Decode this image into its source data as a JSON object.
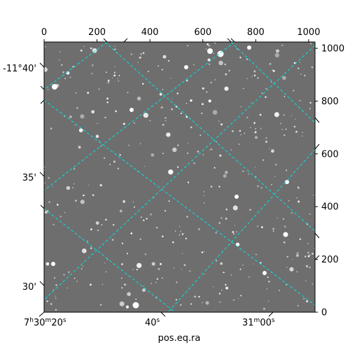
{
  "chart_data": {
    "type": "sky-image",
    "image_style": "grayscale star field",
    "colors": {
      "background": "#6e6e6e",
      "grid": "#00e5e5",
      "frame": "#000000"
    },
    "pixel_axes": {
      "xlim": [
        0,
        1024
      ],
      "ylim": [
        0,
        1024
      ],
      "top_ticks": [
        "0",
        "200",
        "400",
        "600",
        "800",
        "1000"
      ],
      "right_ticks": [
        "0",
        "200",
        "400",
        "600",
        "800",
        "1000"
      ]
    },
    "world_axes": {
      "xlabel": "pos.eq.ra",
      "ra_ticks": [
        {
          "h": "7",
          "m": "30",
          "s": "20",
          "label": "7h30m20s"
        },
        {
          "s": "40",
          "label": "40s"
        },
        {
          "m": "31",
          "s": "00",
          "label": "31m00s"
        }
      ],
      "dec_ticks": [
        "-11°40'",
        "35'",
        "30'"
      ]
    },
    "grid": true
  }
}
